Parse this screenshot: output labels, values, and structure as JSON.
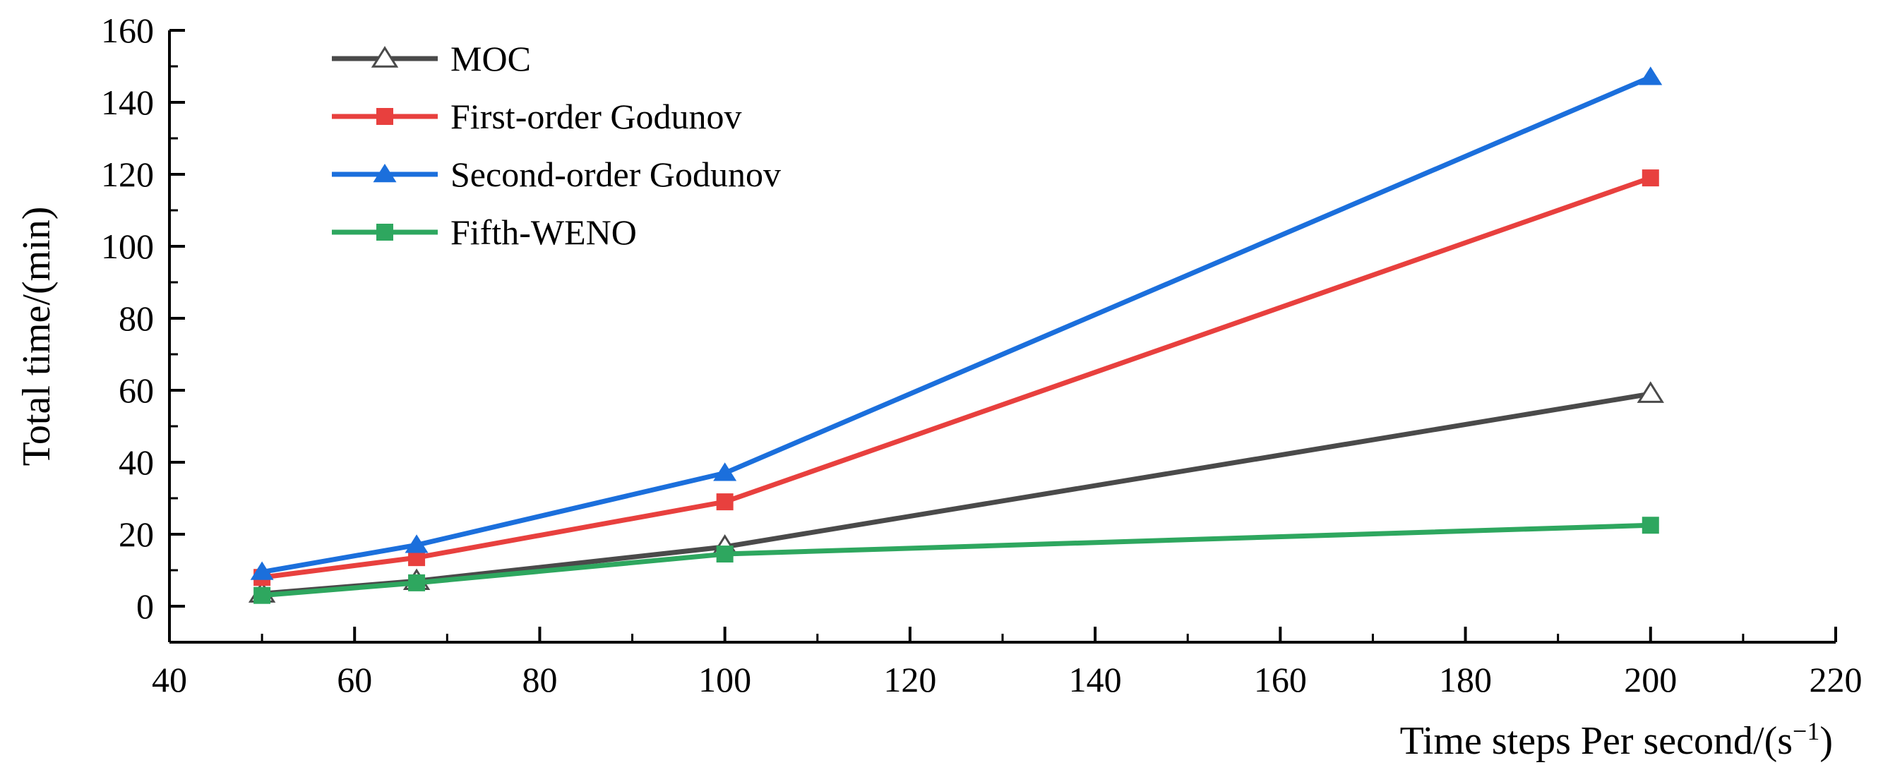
{
  "chart_data": {
    "type": "line",
    "xlabel": "Time steps Per second/(s",
    "xlabel_sup": "−1",
    "xlabel_tail": ")",
    "ylabel": "Total time/(min)",
    "xlim": [
      40,
      220
    ],
    "ylim": [
      -10,
      160
    ],
    "x_ticks": [
      40,
      60,
      80,
      100,
      120,
      140,
      160,
      180,
      200,
      220
    ],
    "y_ticks": [
      0,
      20,
      40,
      60,
      80,
      100,
      120,
      140,
      160
    ],
    "x_tick_labels": [
      "40",
      "60",
      "80",
      "100",
      "120",
      "140",
      "160",
      "180",
      "200",
      "220"
    ],
    "y_tick_labels": [
      "0",
      "20",
      "40",
      "60",
      "80",
      "100",
      "120",
      "140",
      "160"
    ],
    "legend_position": "top-left",
    "grid": false,
    "x": [
      50,
      66.7,
      100,
      200
    ],
    "series": [
      {
        "name": "MOC",
        "values": [
          3.5,
          7,
          16.5,
          59
        ],
        "color": "#4a4a4a",
        "marker": "open-triangle"
      },
      {
        "name": "First-order Godunov",
        "values": [
          8,
          13.5,
          29,
          119
        ],
        "color": "#e8403e",
        "marker": "square"
      },
      {
        "name": "Second-order Godunov",
        "values": [
          9.5,
          17,
          37,
          147
        ],
        "color": "#1b6fdc",
        "marker": "triangle"
      },
      {
        "name": "Fifth-WENO",
        "values": [
          3,
          6.5,
          14.5,
          22.5
        ],
        "color": "#2ea75f",
        "marker": "square"
      }
    ]
  }
}
